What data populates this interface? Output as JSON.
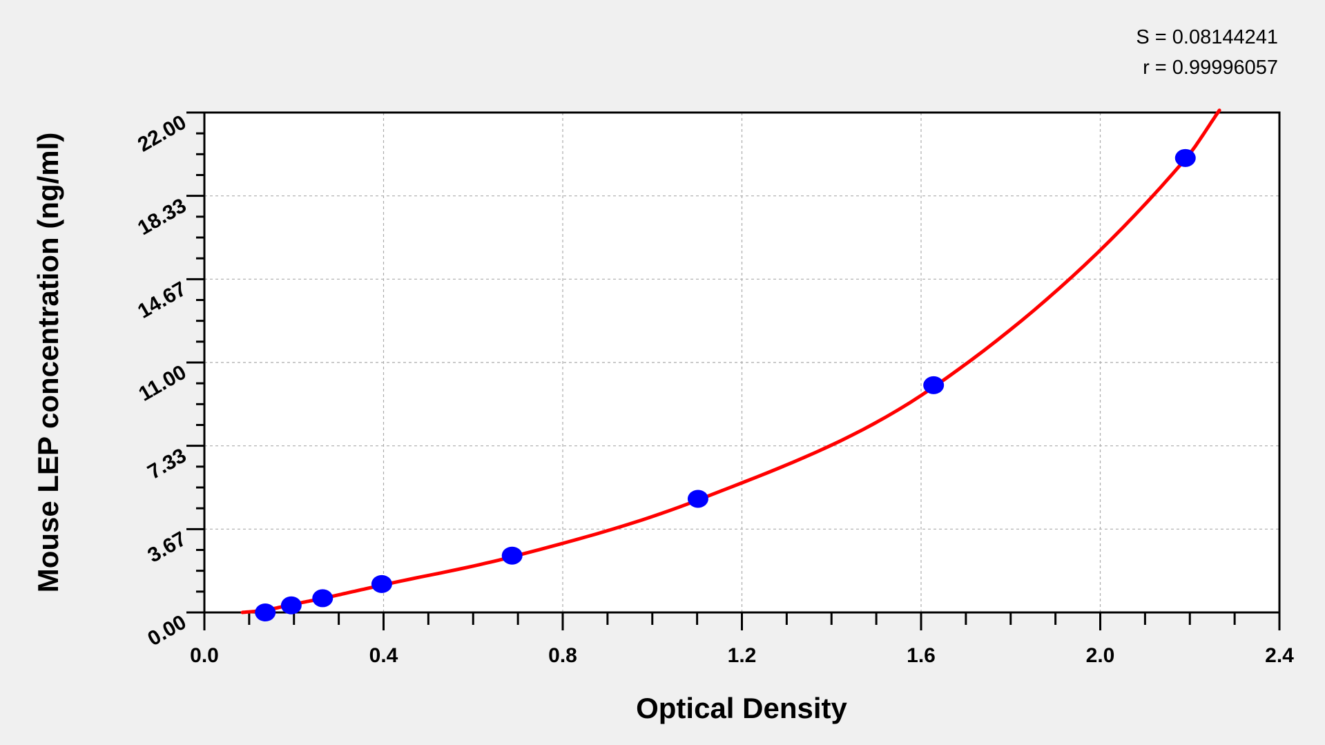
{
  "chart_data": {
    "type": "scatter",
    "title": "",
    "xlabel": "Optical Density",
    "ylabel": "Mouse LEP concentration (ng/ml)",
    "xlim": [
      0.0,
      2.4
    ],
    "ylim": [
      0.0,
      22.0
    ],
    "x_ticks": [
      "0.0",
      "0.4",
      "0.8",
      "1.2",
      "1.6",
      "2.0",
      "2.4"
    ],
    "y_ticks": [
      "0.00",
      "3.67",
      "7.33",
      "11.00",
      "14.67",
      "18.33",
      "22.00"
    ],
    "grid": true,
    "annotations": {
      "s": "S = 0.08144241",
      "r": "r = 0.99996057"
    },
    "points": {
      "color": "#0000ff",
      "x": [
        0.136,
        0.194,
        0.264,
        0.396,
        0.687,
        1.102,
        1.628,
        2.19
      ],
      "y": [
        0,
        0.31,
        0.625,
        1.25,
        2.5,
        5,
        10,
        20
      ]
    },
    "fit_curve": {
      "color": "#ff0000",
      "x": [
        0.085,
        0.136,
        0.194,
        0.264,
        0.396,
        0.687,
        1.102,
        1.628,
        2.19,
        2.266
      ],
      "y": [
        0,
        0.1,
        0.34,
        0.62,
        1.2,
        2.45,
        4.95,
        9.92,
        19.95,
        22.1
      ]
    }
  }
}
